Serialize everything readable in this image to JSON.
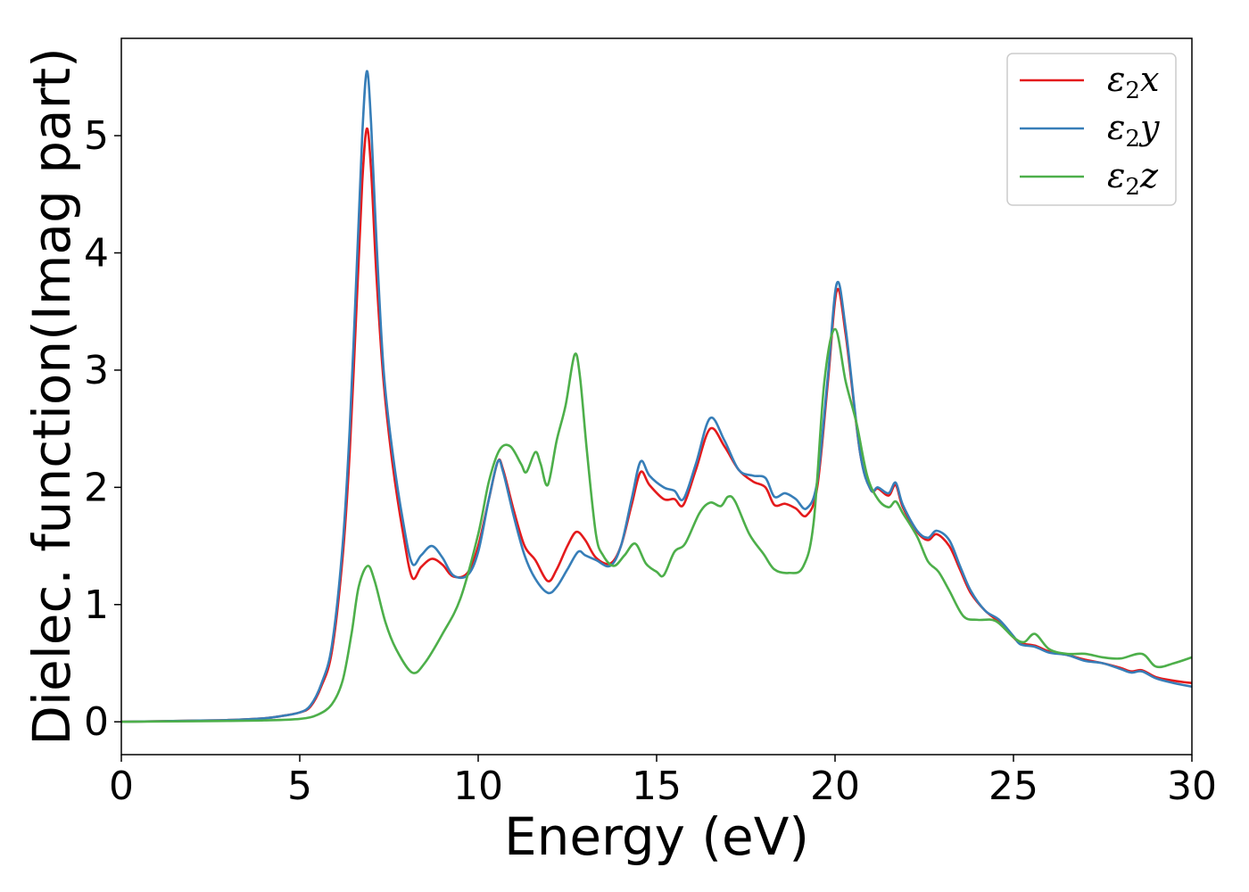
{
  "chart_data": {
    "type": "line",
    "title": "",
    "xlabel": "Energy (eV)",
    "ylabel": "Dielec. function(Imag part)",
    "xlim": [
      0,
      30
    ],
    "ylim": [
      -0.28,
      5.83
    ],
    "xticks": [
      0,
      5,
      10,
      15,
      20,
      25,
      30
    ],
    "yticks": [
      0,
      1,
      2,
      3,
      4,
      5
    ],
    "grid": false,
    "legend_position": "top-right",
    "series": [
      {
        "name": "ε2x",
        "sym": "ε",
        "sub": "2",
        "comp": "x",
        "color": "#e41a1c",
        "points": [
          [
            0,
            0
          ],
          [
            2,
            0.01
          ],
          [
            3,
            0.015
          ],
          [
            4,
            0.03
          ],
          [
            4.5,
            0.05
          ],
          [
            5,
            0.08
          ],
          [
            5.3,
            0.13
          ],
          [
            5.6,
            0.3
          ],
          [
            5.9,
            0.6
          ],
          [
            6.2,
            1.4
          ],
          [
            6.4,
            2.3
          ],
          [
            6.6,
            3.6
          ],
          [
            6.75,
            4.6
          ],
          [
            6.88,
            5.06
          ],
          [
            7.0,
            4.7
          ],
          [
            7.15,
            3.8
          ],
          [
            7.35,
            2.9
          ],
          [
            7.6,
            2.2
          ],
          [
            7.9,
            1.6
          ],
          [
            8.15,
            1.23
          ],
          [
            8.4,
            1.32
          ],
          [
            8.7,
            1.39
          ],
          [
            9.0,
            1.34
          ],
          [
            9.3,
            1.24
          ],
          [
            9.7,
            1.27
          ],
          [
            10.0,
            1.5
          ],
          [
            10.3,
            1.9
          ],
          [
            10.55,
            2.22
          ],
          [
            10.7,
            2.15
          ],
          [
            11.0,
            1.8
          ],
          [
            11.3,
            1.5
          ],
          [
            11.6,
            1.38
          ],
          [
            11.95,
            1.2
          ],
          [
            12.2,
            1.3
          ],
          [
            12.5,
            1.5
          ],
          [
            12.75,
            1.62
          ],
          [
            13.0,
            1.55
          ],
          [
            13.3,
            1.4
          ],
          [
            13.7,
            1.35
          ],
          [
            14.0,
            1.5
          ],
          [
            14.3,
            1.85
          ],
          [
            14.55,
            2.13
          ],
          [
            14.8,
            2.02
          ],
          [
            15.2,
            1.9
          ],
          [
            15.5,
            1.9
          ],
          [
            15.75,
            1.85
          ],
          [
            16.1,
            2.15
          ],
          [
            16.5,
            2.5
          ],
          [
            16.9,
            2.35
          ],
          [
            17.3,
            2.15
          ],
          [
            17.7,
            2.05
          ],
          [
            18.05,
            2.0
          ],
          [
            18.3,
            1.85
          ],
          [
            18.6,
            1.86
          ],
          [
            18.9,
            1.82
          ],
          [
            19.2,
            1.76
          ],
          [
            19.5,
            2.0
          ],
          [
            19.8,
            2.9
          ],
          [
            20.05,
            3.68
          ],
          [
            20.3,
            3.3
          ],
          [
            20.7,
            2.3
          ],
          [
            21.0,
            1.98
          ],
          [
            21.2,
            1.99
          ],
          [
            21.5,
            1.93
          ],
          [
            21.7,
            2.02
          ],
          [
            21.9,
            1.83
          ],
          [
            22.3,
            1.62
          ],
          [
            22.6,
            1.55
          ],
          [
            22.85,
            1.6
          ],
          [
            23.2,
            1.5
          ],
          [
            23.5,
            1.3
          ],
          [
            23.8,
            1.1
          ],
          [
            24.2,
            0.95
          ],
          [
            24.6,
            0.85
          ],
          [
            25.0,
            0.72
          ],
          [
            25.2,
            0.67
          ],
          [
            25.6,
            0.65
          ],
          [
            26.0,
            0.6
          ],
          [
            26.5,
            0.57
          ],
          [
            27.0,
            0.53
          ],
          [
            27.5,
            0.5
          ],
          [
            28.0,
            0.46
          ],
          [
            28.3,
            0.43
          ],
          [
            28.6,
            0.44
          ],
          [
            29.0,
            0.38
          ],
          [
            29.5,
            0.35
          ],
          [
            30,
            0.33
          ]
        ]
      },
      {
        "name": "ε2y",
        "sym": "ε",
        "sub": "2",
        "comp": "y",
        "color": "#377eb8",
        "points": [
          [
            0,
            0
          ],
          [
            2,
            0.01
          ],
          [
            3,
            0.015
          ],
          [
            4,
            0.03
          ],
          [
            4.5,
            0.05
          ],
          [
            5,
            0.08
          ],
          [
            5.3,
            0.14
          ],
          [
            5.6,
            0.32
          ],
          [
            5.9,
            0.65
          ],
          [
            6.2,
            1.5
          ],
          [
            6.4,
            2.5
          ],
          [
            6.6,
            3.9
          ],
          [
            6.75,
            5.0
          ],
          [
            6.88,
            5.55
          ],
          [
            7.0,
            5.1
          ],
          [
            7.15,
            4.1
          ],
          [
            7.35,
            3.0
          ],
          [
            7.6,
            2.3
          ],
          [
            7.9,
            1.7
          ],
          [
            8.15,
            1.35
          ],
          [
            8.4,
            1.42
          ],
          [
            8.7,
            1.5
          ],
          [
            9.0,
            1.4
          ],
          [
            9.3,
            1.25
          ],
          [
            9.7,
            1.25
          ],
          [
            10.0,
            1.45
          ],
          [
            10.3,
            1.9
          ],
          [
            10.55,
            2.22
          ],
          [
            10.7,
            2.13
          ],
          [
            11.0,
            1.75
          ],
          [
            11.3,
            1.42
          ],
          [
            11.6,
            1.22
          ],
          [
            11.95,
            1.1
          ],
          [
            12.2,
            1.15
          ],
          [
            12.5,
            1.3
          ],
          [
            12.8,
            1.45
          ],
          [
            13.0,
            1.42
          ],
          [
            13.3,
            1.38
          ],
          [
            13.7,
            1.33
          ],
          [
            14.0,
            1.5
          ],
          [
            14.3,
            1.9
          ],
          [
            14.55,
            2.22
          ],
          [
            14.8,
            2.1
          ],
          [
            15.2,
            2.0
          ],
          [
            15.5,
            1.97
          ],
          [
            15.75,
            1.9
          ],
          [
            16.1,
            2.2
          ],
          [
            16.5,
            2.59
          ],
          [
            16.9,
            2.4
          ],
          [
            17.3,
            2.15
          ],
          [
            17.7,
            2.1
          ],
          [
            18.05,
            2.08
          ],
          [
            18.3,
            1.92
          ],
          [
            18.6,
            1.95
          ],
          [
            18.9,
            1.9
          ],
          [
            19.2,
            1.82
          ],
          [
            19.5,
            2.05
          ],
          [
            19.8,
            2.95
          ],
          [
            20.05,
            3.74
          ],
          [
            20.3,
            3.35
          ],
          [
            20.7,
            2.3
          ],
          [
            21.0,
            1.98
          ],
          [
            21.2,
            2.0
          ],
          [
            21.5,
            1.95
          ],
          [
            21.7,
            2.04
          ],
          [
            21.9,
            1.85
          ],
          [
            22.3,
            1.63
          ],
          [
            22.6,
            1.57
          ],
          [
            22.85,
            1.63
          ],
          [
            23.2,
            1.55
          ],
          [
            23.5,
            1.33
          ],
          [
            23.8,
            1.12
          ],
          [
            24.2,
            0.95
          ],
          [
            24.6,
            0.87
          ],
          [
            25.0,
            0.73
          ],
          [
            25.2,
            0.66
          ],
          [
            25.6,
            0.64
          ],
          [
            26.0,
            0.59
          ],
          [
            26.5,
            0.57
          ],
          [
            27.0,
            0.52
          ],
          [
            27.5,
            0.5
          ],
          [
            28.0,
            0.45
          ],
          [
            28.3,
            0.42
          ],
          [
            28.6,
            0.43
          ],
          [
            29.0,
            0.37
          ],
          [
            29.5,
            0.33
          ],
          [
            30,
            0.3
          ]
        ]
      },
      {
        "name": "ε2z",
        "sym": "ε",
        "sub": "2",
        "comp": "z",
        "color": "#4daf4a",
        "points": [
          [
            0,
            0
          ],
          [
            2,
            0.005
          ],
          [
            3,
            0.008
          ],
          [
            4,
            0.012
          ],
          [
            5,
            0.025
          ],
          [
            5.5,
            0.06
          ],
          [
            5.9,
            0.15
          ],
          [
            6.2,
            0.35
          ],
          [
            6.45,
            0.75
          ],
          [
            6.65,
            1.15
          ],
          [
            6.9,
            1.33
          ],
          [
            7.1,
            1.2
          ],
          [
            7.4,
            0.85
          ],
          [
            7.7,
            0.62
          ],
          [
            8.15,
            0.42
          ],
          [
            8.5,
            0.5
          ],
          [
            9.0,
            0.75
          ],
          [
            9.5,
            1.05
          ],
          [
            10.0,
            1.6
          ],
          [
            10.3,
            2.05
          ],
          [
            10.6,
            2.32
          ],
          [
            10.9,
            2.35
          ],
          [
            11.2,
            2.2
          ],
          [
            11.35,
            2.13
          ],
          [
            11.6,
            2.3
          ],
          [
            11.75,
            2.2
          ],
          [
            11.95,
            2.02
          ],
          [
            12.2,
            2.4
          ],
          [
            12.45,
            2.7
          ],
          [
            12.7,
            3.13
          ],
          [
            12.85,
            2.95
          ],
          [
            13.05,
            2.3
          ],
          [
            13.3,
            1.6
          ],
          [
            13.5,
            1.42
          ],
          [
            13.8,
            1.33
          ],
          [
            14.1,
            1.42
          ],
          [
            14.4,
            1.52
          ],
          [
            14.7,
            1.35
          ],
          [
            15.0,
            1.28
          ],
          [
            15.2,
            1.25
          ],
          [
            15.5,
            1.45
          ],
          [
            15.8,
            1.52
          ],
          [
            16.2,
            1.78
          ],
          [
            16.5,
            1.87
          ],
          [
            16.8,
            1.84
          ],
          [
            17.0,
            1.92
          ],
          [
            17.2,
            1.88
          ],
          [
            17.6,
            1.6
          ],
          [
            18.0,
            1.43
          ],
          [
            18.3,
            1.3
          ],
          [
            18.7,
            1.27
          ],
          [
            19.1,
            1.32
          ],
          [
            19.4,
            1.7
          ],
          [
            19.7,
            2.9
          ],
          [
            20.0,
            3.35
          ],
          [
            20.3,
            2.9
          ],
          [
            20.6,
            2.55
          ],
          [
            20.9,
            2.1
          ],
          [
            21.2,
            1.9
          ],
          [
            21.5,
            1.83
          ],
          [
            21.7,
            1.88
          ],
          [
            21.9,
            1.78
          ],
          [
            22.3,
            1.58
          ],
          [
            22.6,
            1.37
          ],
          [
            22.9,
            1.28
          ],
          [
            23.2,
            1.12
          ],
          [
            23.6,
            0.9
          ],
          [
            24.0,
            0.87
          ],
          [
            24.5,
            0.86
          ],
          [
            25.0,
            0.72
          ],
          [
            25.3,
            0.68
          ],
          [
            25.6,
            0.75
          ],
          [
            26.0,
            0.62
          ],
          [
            26.5,
            0.58
          ],
          [
            27.0,
            0.58
          ],
          [
            27.5,
            0.55
          ],
          [
            28.0,
            0.54
          ],
          [
            28.6,
            0.58
          ],
          [
            29.0,
            0.47
          ],
          [
            29.5,
            0.5
          ],
          [
            30,
            0.55
          ]
        ]
      }
    ]
  }
}
